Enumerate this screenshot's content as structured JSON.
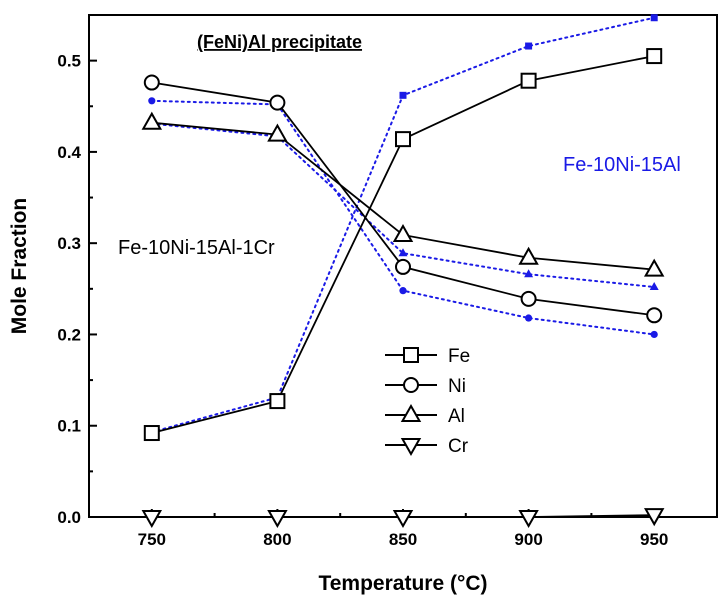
{
  "chart_data": {
    "type": "line",
    "title": "(FeNi)Al precipitate",
    "xlabel": "Temperature (°C)",
    "ylabel": "Mole Fraction",
    "x": [
      750,
      800,
      850,
      900,
      950
    ],
    "xlim": [
      725,
      975
    ],
    "ylim": [
      0.0,
      0.55
    ],
    "xticks": [
      "750",
      "800",
      "850",
      "900",
      "950"
    ],
    "yticks": [
      "0.0",
      "0.1",
      "0.2",
      "0.3",
      "0.4",
      "0.5"
    ],
    "grid": false,
    "legend_position": "center-right",
    "series": [
      {
        "name": "Fe",
        "alloy": "Fe-10Ni-15Al-1Cr",
        "marker": "square",
        "style": "solid",
        "color": "#000000",
        "values": [
          0.092,
          0.127,
          0.414,
          0.478,
          0.505
        ]
      },
      {
        "name": "Ni",
        "alloy": "Fe-10Ni-15Al-1Cr",
        "marker": "circle",
        "style": "solid",
        "color": "#000000",
        "values": [
          0.476,
          0.454,
          0.274,
          0.239,
          0.221
        ]
      },
      {
        "name": "Al",
        "alloy": "Fe-10Ni-15Al-1Cr",
        "marker": "triangle-up",
        "style": "solid",
        "color": "#000000",
        "values": [
          0.432,
          0.419,
          0.309,
          0.284,
          0.271
        ]
      },
      {
        "name": "Cr",
        "alloy": "Fe-10Ni-15Al-1Cr",
        "marker": "triangle-down",
        "style": "solid",
        "color": "#000000",
        "values": [
          0.0,
          0.0,
          0.0,
          0.0,
          0.002
        ]
      },
      {
        "name": "Fe",
        "alloy": "Fe-10Ni-15Al",
        "marker": "square-filled",
        "style": "dotted",
        "color": "#1a1ae6",
        "values": [
          0.093,
          0.131,
          0.462,
          0.516,
          0.547
        ]
      },
      {
        "name": "Ni",
        "alloy": "Fe-10Ni-15Al",
        "marker": "circle-filled",
        "style": "dotted",
        "color": "#1a1ae6",
        "values": [
          0.456,
          0.452,
          0.248,
          0.218,
          0.2
        ]
      },
      {
        "name": "Al",
        "alloy": "Fe-10Ni-15Al",
        "marker": "triangle-filled",
        "style": "dotted",
        "color": "#1a1ae6",
        "values": [
          0.431,
          0.417,
          0.289,
          0.266,
          0.252
        ]
      }
    ],
    "annotations": [
      {
        "text": "Fe-10Ni-15Al-1Cr",
        "color": "#000000"
      },
      {
        "text": "Fe-10Ni-15Al",
        "color": "#1a1ae6"
      }
    ],
    "legend": [
      "Fe",
      "Ni",
      "Al",
      "Cr"
    ]
  }
}
